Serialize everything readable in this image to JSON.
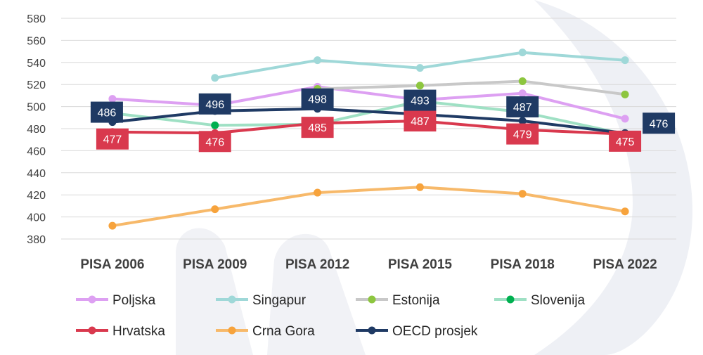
{
  "chart_data": {
    "type": "line",
    "title": "",
    "xlabel": "",
    "ylabel": "",
    "categories": [
      "PISA 2006",
      "PISA 2009",
      "PISA 2012",
      "PISA 2015",
      "PISA 2018",
      "PISA 2022"
    ],
    "yticks": [
      "380",
      "400",
      "420",
      "440",
      "460",
      "480",
      "500",
      "520",
      "540",
      "560",
      "580"
    ],
    "ylim": [
      380,
      580
    ],
    "grid": true,
    "legend": "bottom",
    "series": [
      {
        "name": "Poljska",
        "color": "#DDA0F2",
        "values": [
          507,
          501,
          518,
          506,
          512,
          489
        ]
      },
      {
        "name": "Singapur",
        "color": "#9FD8D8",
        "values": [
          null,
          526,
          542,
          535,
          549,
          542
        ]
      },
      {
        "name": "Estonija",
        "color": "#C8C8C8",
        "marker": "#8DC63F",
        "values": [
          null,
          null,
          516,
          519,
          523,
          511
        ]
      },
      {
        "name": "Slovenija",
        "color": "#9FE0C4",
        "marker": "#00B050",
        "values": [
          494,
          483,
          484,
          505,
          495,
          475
        ]
      },
      {
        "name": "Hrvatska",
        "color": "#D9394E",
        "values": [
          477,
          476,
          485,
          487,
          479,
          475
        ],
        "labels": [
          "477",
          "476",
          "485",
          "487",
          "479",
          "475"
        ]
      },
      {
        "name": "Crna Gora",
        "color": "#F7B96A",
        "marker": "#F7A33C",
        "values": [
          392,
          407,
          422,
          427,
          421,
          405
        ]
      },
      {
        "name": "OECD prosjek",
        "color": "#1F3A64",
        "values": [
          486,
          496,
          498,
          493,
          487,
          476
        ],
        "labels": [
          "486",
          "496",
          "498",
          "493",
          "487",
          "476"
        ]
      }
    ]
  }
}
